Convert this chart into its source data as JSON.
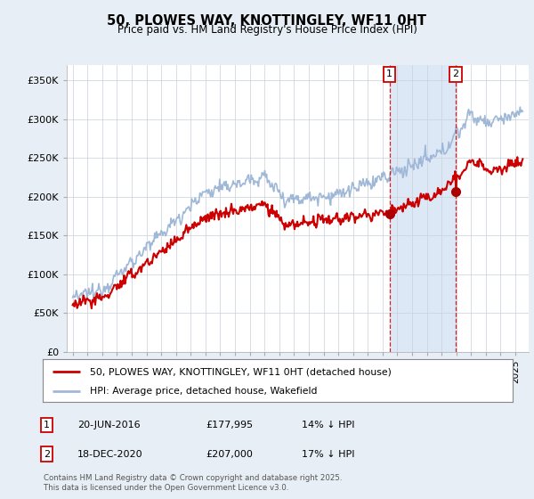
{
  "title": "50, PLOWES WAY, KNOTTINGLEY, WF11 0HT",
  "subtitle": "Price paid vs. HM Land Registry's House Price Index (HPI)",
  "hpi_color": "#a0b8d8",
  "price_color": "#cc0000",
  "marker_color": "#aa0000",
  "shade_color": "#dce8f5",
  "background_color": "#e8eef5",
  "plot_bg": "#ffffff",
  "ylim": [
    0,
    370000
  ],
  "yticks": [
    0,
    50000,
    100000,
    150000,
    200000,
    250000,
    300000,
    350000
  ],
  "legend_label_price": "50, PLOWES WAY, KNOTTINGLEY, WF11 0HT (detached house)",
  "legend_label_hpi": "HPI: Average price, detached house, Wakefield",
  "transaction1_date": "20-JUN-2016",
  "transaction1_price": "£177,995",
  "transaction1_detail": "14% ↓ HPI",
  "transaction2_date": "18-DEC-2020",
  "transaction2_price": "£207,000",
  "transaction2_detail": "17% ↓ HPI",
  "footnote": "Contains HM Land Registry data © Crown copyright and database right 2025.\nThis data is licensed under the Open Government Licence v3.0.",
  "vline1_x": 2016.47,
  "vline2_x": 2020.96,
  "marker1_y": 177995,
  "marker2_y": 207000,
  "xlim_left": 1994.6,
  "xlim_right": 2025.9
}
